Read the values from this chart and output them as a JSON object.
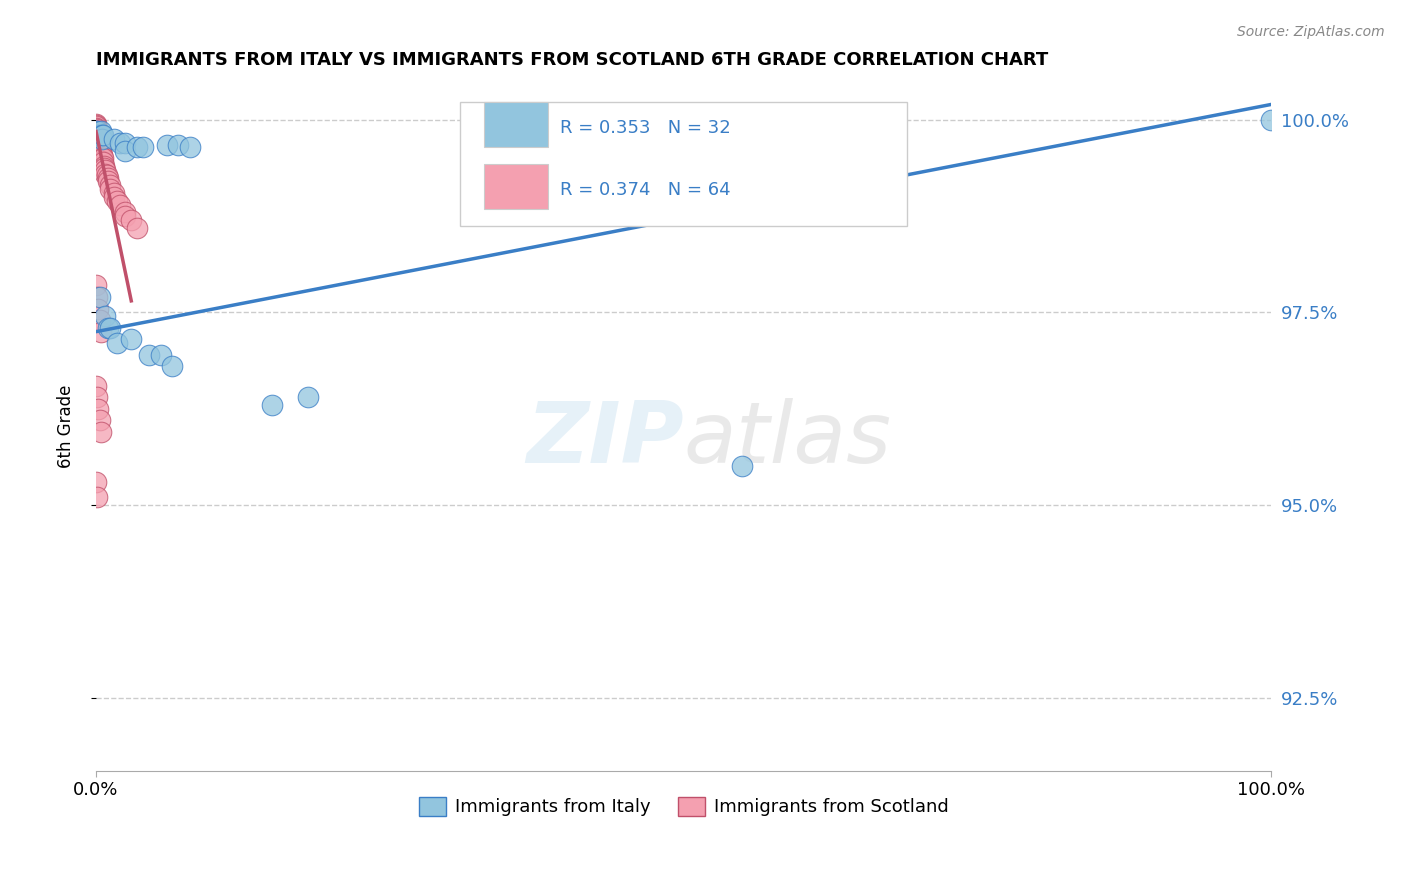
{
  "title": "IMMIGRANTS FROM ITALY VS IMMIGRANTS FROM SCOTLAND 6TH GRADE CORRELATION CHART",
  "source": "Source: ZipAtlas.com",
  "ylabel": "6th Grade",
  "legend_labels": [
    "Immigrants from Italy",
    "Immigrants from Scotland"
  ],
  "legend_r_italy": "R = 0.353",
  "legend_n_italy": "N = 32",
  "legend_r_scotland": "R = 0.374",
  "legend_n_scotland": "N = 64",
  "color_italy": "#92C5DE",
  "color_scotland": "#F4A0B0",
  "color_italy_line": "#3A7EC6",
  "color_scotland_line": "#C0506A",
  "color_text_blue": "#3A7EC6",
  "italy_x": [
    0.0,
    0.001,
    0.001,
    0.002,
    0.003,
    0.004,
    0.004,
    0.005,
    0.005,
    0.006,
    0.015,
    0.02,
    0.025,
    0.025,
    0.035,
    0.04,
    0.06,
    0.07,
    0.08,
    0.003,
    0.008,
    0.01,
    0.012,
    0.018,
    0.03,
    0.045,
    0.055,
    0.065,
    0.15,
    0.18,
    0.55,
    1.0
  ],
  "italy_y": [
    0.9985,
    0.9985,
    0.998,
    0.998,
    0.998,
    0.998,
    0.9985,
    0.998,
    0.9975,
    0.998,
    0.9975,
    0.997,
    0.997,
    0.996,
    0.9965,
    0.9965,
    0.9968,
    0.9968,
    0.9965,
    0.977,
    0.9745,
    0.973,
    0.973,
    0.971,
    0.9715,
    0.9695,
    0.9695,
    0.968,
    0.963,
    0.964,
    0.955,
    1.0
  ],
  "scotland_x": [
    0.0,
    0.0,
    0.0,
    0.0,
    0.0,
    0.0,
    0.0,
    0.0,
    0.0,
    0.0,
    0.0,
    0.001,
    0.001,
    0.001,
    0.001,
    0.001,
    0.001,
    0.001,
    0.002,
    0.002,
    0.002,
    0.002,
    0.002,
    0.003,
    0.003,
    0.003,
    0.003,
    0.004,
    0.004,
    0.004,
    0.005,
    0.005,
    0.005,
    0.006,
    0.006,
    0.007,
    0.007,
    0.008,
    0.008,
    0.009,
    0.01,
    0.01,
    0.012,
    0.012,
    0.015,
    0.015,
    0.018,
    0.02,
    0.025,
    0.025,
    0.03,
    0.035,
    0.0,
    0.001,
    0.002,
    0.003,
    0.004,
    0.0,
    0.001,
    0.002,
    0.003,
    0.004,
    0.0,
    0.001
  ],
  "scotland_y": [
    0.9995,
    0.9993,
    0.9992,
    0.999,
    0.9988,
    0.9985,
    0.9982,
    0.998,
    0.9978,
    0.9975,
    0.9972,
    0.9985,
    0.998,
    0.9978,
    0.9975,
    0.997,
    0.9968,
    0.9965,
    0.9975,
    0.997,
    0.9968,
    0.9965,
    0.9962,
    0.997,
    0.9965,
    0.9962,
    0.9958,
    0.996,
    0.9957,
    0.9953,
    0.9955,
    0.995,
    0.9947,
    0.995,
    0.9945,
    0.994,
    0.9937,
    0.9935,
    0.993,
    0.9928,
    0.9925,
    0.992,
    0.9915,
    0.991,
    0.9905,
    0.99,
    0.9895,
    0.989,
    0.988,
    0.9875,
    0.987,
    0.986,
    0.9785,
    0.977,
    0.9755,
    0.974,
    0.9725,
    0.9655,
    0.964,
    0.9625,
    0.961,
    0.9595,
    0.953,
    0.951
  ],
  "xlim": [
    0.0,
    1.0
  ],
  "ylim": [
    0.9155,
    1.005
  ],
  "yticks": [
    0.925,
    0.95,
    0.975,
    1.0
  ],
  "ytick_labels_right": [
    "92.5%",
    "95.0%",
    "97.5%",
    "100.0%"
  ],
  "xticks": [
    0.0,
    1.0
  ],
  "xtick_labels": [
    "0.0%",
    "100.0%"
  ],
  "italy_trend": [
    0.0,
    1.0,
    0.9725,
    1.002
  ],
  "scotland_trend": [
    0.0,
    0.03,
    0.9985,
    0.9765
  ]
}
